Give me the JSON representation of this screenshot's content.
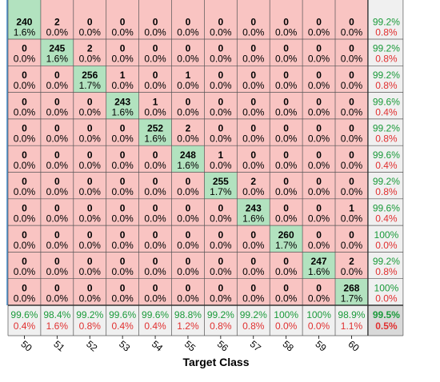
{
  "chart_data": {
    "type": "heatmap",
    "subtype": "confusion-matrix",
    "xlabel": "Target Class",
    "classes": [
      "50",
      "51",
      "52",
      "53",
      "54",
      "55",
      "56",
      "57",
      "58",
      "59",
      "60"
    ],
    "top_partial_tick_labels": [
      "",
      "",
      "",
      "",
      "",
      "",
      "",
      "",
      "",
      "",
      ""
    ],
    "counts": [
      [
        240,
        2,
        0,
        0,
        0,
        0,
        0,
        0,
        0,
        0,
        0
      ],
      [
        0,
        245,
        2,
        0,
        0,
        0,
        0,
        0,
        0,
        0,
        0
      ],
      [
        0,
        0,
        256,
        1,
        0,
        1,
        0,
        0,
        0,
        0,
        0
      ],
      [
        0,
        0,
        0,
        243,
        1,
        0,
        0,
        0,
        0,
        0,
        0
      ],
      [
        0,
        0,
        0,
        0,
        252,
        2,
        0,
        0,
        0,
        0,
        0
      ],
      [
        0,
        0,
        0,
        0,
        0,
        248,
        1,
        0,
        0,
        0,
        0
      ],
      [
        0,
        0,
        0,
        0,
        0,
        0,
        255,
        2,
        0,
        0,
        0
      ],
      [
        0,
        0,
        0,
        0,
        0,
        0,
        0,
        243,
        0,
        0,
        1
      ],
      [
        0,
        0,
        0,
        0,
        0,
        0,
        0,
        0,
        260,
        0,
        0
      ],
      [
        0,
        0,
        0,
        0,
        0,
        0,
        0,
        0,
        0,
        247,
        2
      ],
      [
        0,
        0,
        0,
        0,
        0,
        0,
        0,
        0,
        0,
        0,
        268
      ]
    ],
    "percents": [
      [
        "1.6%",
        "0.0%",
        "0.0%",
        "0.0%",
        "0.0%",
        "0.0%",
        "0.0%",
        "0.0%",
        "0.0%",
        "0.0%",
        "0.0%"
      ],
      [
        "0.0%",
        "1.6%",
        "0.0%",
        "0.0%",
        "0.0%",
        "0.0%",
        "0.0%",
        "0.0%",
        "0.0%",
        "0.0%",
        "0.0%"
      ],
      [
        "0.0%",
        "0.0%",
        "1.7%",
        "0.0%",
        "0.0%",
        "0.0%",
        "0.0%",
        "0.0%",
        "0.0%",
        "0.0%",
        "0.0%"
      ],
      [
        "0.0%",
        "0.0%",
        "0.0%",
        "1.6%",
        "0.0%",
        "0.0%",
        "0.0%",
        "0.0%",
        "0.0%",
        "0.0%",
        "0.0%"
      ],
      [
        "0.0%",
        "0.0%",
        "0.0%",
        "0.0%",
        "1.6%",
        "0.0%",
        "0.0%",
        "0.0%",
        "0.0%",
        "0.0%",
        "0.0%"
      ],
      [
        "0.0%",
        "0.0%",
        "0.0%",
        "0.0%",
        "0.0%",
        "1.6%",
        "0.0%",
        "0.0%",
        "0.0%",
        "0.0%",
        "0.0%"
      ],
      [
        "0.0%",
        "0.0%",
        "0.0%",
        "0.0%",
        "0.0%",
        "0.0%",
        "1.7%",
        "0.0%",
        "0.0%",
        "0.0%",
        "0.0%"
      ],
      [
        "0.0%",
        "0.0%",
        "0.0%",
        "0.0%",
        "0.0%",
        "0.0%",
        "0.0%",
        "1.6%",
        "0.0%",
        "0.0%",
        "0.0%"
      ],
      [
        "0.0%",
        "0.0%",
        "0.0%",
        "0.0%",
        "0.0%",
        "0.0%",
        "0.0%",
        "0.0%",
        "1.7%",
        "0.0%",
        "0.0%"
      ],
      [
        "0.0%",
        "0.0%",
        "0.0%",
        "0.0%",
        "0.0%",
        "0.0%",
        "0.0%",
        "0.0%",
        "0.0%",
        "1.6%",
        "0.0%"
      ],
      [
        "0.0%",
        "0.0%",
        "0.0%",
        "0.0%",
        "0.0%",
        "0.0%",
        "0.0%",
        "0.0%",
        "0.0%",
        "0.0%",
        "1.7%"
      ]
    ],
    "row_summary": [
      [
        "99.2%",
        "0.8%"
      ],
      [
        "99.2%",
        "0.8%"
      ],
      [
        "99.2%",
        "0.8%"
      ],
      [
        "99.6%",
        "0.4%"
      ],
      [
        "99.2%",
        "0.8%"
      ],
      [
        "99.6%",
        "0.4%"
      ],
      [
        "99.2%",
        "0.8%"
      ],
      [
        "99.6%",
        "0.4%"
      ],
      [
        "100%",
        "0.0%"
      ],
      [
        "99.2%",
        "0.8%"
      ],
      [
        "100%",
        "0.0%"
      ]
    ],
    "col_summary": [
      [
        "99.6%",
        "0.4%"
      ],
      [
        "98.4%",
        "1.6%"
      ],
      [
        "99.2%",
        "0.8%"
      ],
      [
        "99.6%",
        "0.4%"
      ],
      [
        "99.6%",
        "0.4%"
      ],
      [
        "98.8%",
        "1.2%"
      ],
      [
        "99.2%",
        "0.8%"
      ],
      [
        "99.2%",
        "0.8%"
      ],
      [
        "100%",
        "0.0%"
      ],
      [
        "100%",
        "0.0%"
      ],
      [
        "98.9%",
        "1.1%"
      ]
    ],
    "overall": [
      "99.5%",
      "0.5%"
    ],
    "colors": {
      "diagonal": "#b2e2bf",
      "off_diagonal": "#f9c4c2",
      "summary_bg": "#f0f0f0",
      "overall_bg": "#d9d9d9",
      "good_text": "#1a9a3a",
      "bad_text": "#e03030",
      "grid_line": "#555555",
      "axis_line": "#3a86c8"
    }
  }
}
